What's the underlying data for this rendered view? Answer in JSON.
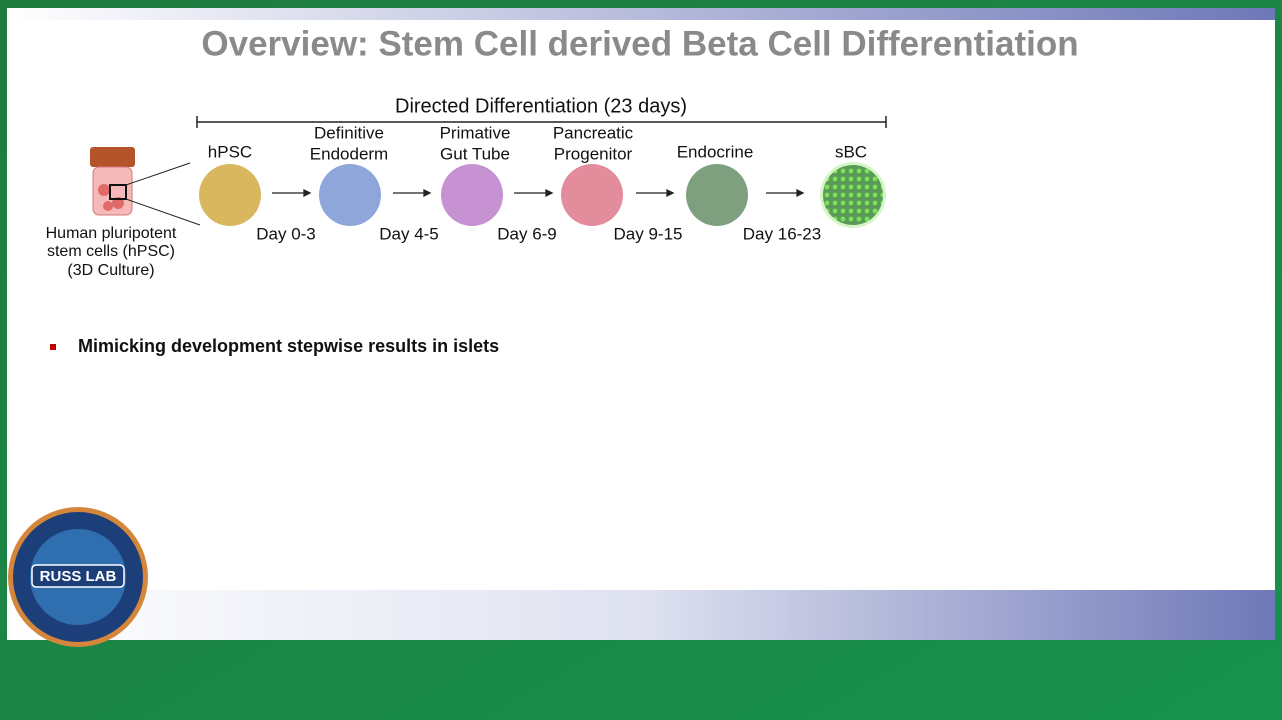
{
  "header": {
    "title": "Overview: Stem Cell derived Beta Cell Differentiation"
  },
  "diagram": {
    "timeline_label": "Directed Differentiation (23 days)",
    "source_label": [
      "Human pluripotent",
      "stem cells (hPSC)",
      "(3D Culture)"
    ],
    "stages": [
      {
        "label": [
          "hPSC"
        ]
      },
      {
        "label": [
          "Definitive",
          "Endoderm"
        ]
      },
      {
        "label": [
          "Primative",
          "Gut Tube"
        ]
      },
      {
        "label": [
          "Pancreatic",
          "Progenitor"
        ]
      },
      {
        "label": [
          "Endocrine"
        ]
      },
      {
        "label": [
          "sBC"
        ]
      }
    ],
    "days": [
      "Day 0-3",
      "Day 4-5",
      "Day 6-9",
      "Day 9-15",
      "Day 16-23"
    ]
  },
  "bullets": [
    "Mimicking development stepwise results in islets"
  ],
  "logo": {
    "text": "RUSS LAB"
  }
}
